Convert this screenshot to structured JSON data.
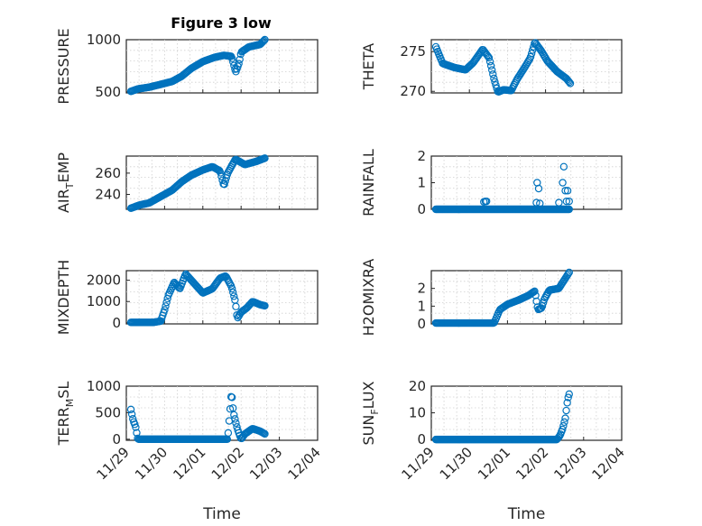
{
  "figure": {
    "title": "Figure 3 low",
    "x_tick_labels": [
      "11/29",
      "11/30",
      "12/01",
      "12/02",
      "12/03",
      "12/04"
    ],
    "xlabel": "Time"
  },
  "chart_data": [
    {
      "type": "scatter",
      "ylabel": "PRESSURE",
      "title": "Figure 3 low",
      "xlim": [
        0,
        5
      ],
      "ylim": [
        490,
        1000
      ],
      "yticks": [
        500,
        1000
      ],
      "knots": [
        [
          0.12,
          505
        ],
        [
          0.3,
          528
        ],
        [
          0.6,
          545
        ],
        [
          0.9,
          572
        ],
        [
          1.2,
          600
        ],
        [
          1.45,
          650
        ],
        [
          1.7,
          725
        ],
        [
          2.0,
          790
        ],
        [
          2.3,
          830
        ],
        [
          2.55,
          850
        ],
        [
          2.75,
          840
        ],
        [
          2.86,
          690
        ],
        [
          2.95,
          780
        ],
        [
          3.0,
          880
        ],
        [
          3.2,
          930
        ],
        [
          3.5,
          955
        ],
        [
          3.62,
          1000
        ]
      ],
      "xlabel": ""
    },
    {
      "type": "scatter",
      "ylabel": "THETA",
      "xlim": [
        0,
        5
      ],
      "ylim": [
        269.8,
        276.5
      ],
      "yticks": [
        270,
        275
      ],
      "knots": [
        [
          0.12,
          275.6
        ],
        [
          0.3,
          273.5
        ],
        [
          0.6,
          273.0
        ],
        [
          0.9,
          272.7
        ],
        [
          1.1,
          273.6
        ],
        [
          1.35,
          275.3
        ],
        [
          1.52,
          274.2
        ],
        [
          1.65,
          271.5
        ],
        [
          1.75,
          269.9
        ],
        [
          1.9,
          270.2
        ],
        [
          2.1,
          270.1
        ],
        [
          2.25,
          271.5
        ],
        [
          2.45,
          273.0
        ],
        [
          2.6,
          274.2
        ],
        [
          2.72,
          276.2
        ],
        [
          2.9,
          275.0
        ],
        [
          3.05,
          273.8
        ],
        [
          3.3,
          272.5
        ],
        [
          3.55,
          271.6
        ],
        [
          3.65,
          271.0
        ]
      ],
      "xlabel": ""
    },
    {
      "type": "scatter",
      "ylabel": "AIR_TEMP",
      "ylabel_main": "AIR",
      "ylabel_sub": "T",
      "ylabel_rest": "EMP",
      "xlim": [
        0,
        5
      ],
      "ylim": [
        226,
        276
      ],
      "yticks": [
        240,
        260
      ],
      "knots": [
        [
          0.12,
          227
        ],
        [
          0.35,
          230
        ],
        [
          0.6,
          232
        ],
        [
          0.9,
          238
        ],
        [
          1.2,
          244
        ],
        [
          1.45,
          252
        ],
        [
          1.7,
          258
        ],
        [
          2.0,
          263
        ],
        [
          2.25,
          266
        ],
        [
          2.45,
          262
        ],
        [
          2.55,
          248
        ],
        [
          2.65,
          260
        ],
        [
          2.85,
          273
        ],
        [
          3.1,
          268
        ],
        [
          3.4,
          271
        ],
        [
          3.62,
          274
        ]
      ],
      "xlabel": ""
    },
    {
      "type": "scatter",
      "ylabel": "RAINFALL",
      "xlim": [
        0,
        5
      ],
      "ylim": [
        0,
        2
      ],
      "yticks": [
        0,
        1,
        2
      ],
      "knots": [
        [
          0.12,
          0
        ],
        [
          3.62,
          0
        ]
      ],
      "extra_points": [
        [
          1.38,
          0.28
        ],
        [
          1.42,
          0.3
        ],
        [
          1.45,
          0.3
        ],
        [
          2.78,
          1.0
        ],
        [
          2.82,
          0.78
        ],
        [
          2.76,
          0.25
        ],
        [
          2.85,
          0.22
        ],
        [
          3.35,
          0.25
        ],
        [
          3.45,
          1.0
        ],
        [
          3.48,
          1.6
        ],
        [
          3.52,
          0.7
        ],
        [
          3.58,
          0.7
        ],
        [
          3.55,
          0.3
        ],
        [
          3.62,
          0.3
        ]
      ],
      "xlabel": ""
    },
    {
      "type": "scatter",
      "ylabel": "MIXDEPTH",
      "xlim": [
        0,
        5
      ],
      "ylim": [
        -50,
        2450
      ],
      "yticks": [
        0,
        1000,
        2000
      ],
      "knots": [
        [
          0.12,
          20
        ],
        [
          0.7,
          20
        ],
        [
          0.9,
          80
        ],
        [
          1.0,
          600
        ],
        [
          1.1,
          1300
        ],
        [
          1.25,
          1900
        ],
        [
          1.4,
          1600
        ],
        [
          1.55,
          2300
        ],
        [
          1.8,
          1800
        ],
        [
          2.0,
          1400
        ],
        [
          2.25,
          1600
        ],
        [
          2.45,
          2100
        ],
        [
          2.6,
          2200
        ],
        [
          2.75,
          1700
        ],
        [
          2.85,
          1000
        ],
        [
          2.9,
          200
        ],
        [
          3.0,
          500
        ],
        [
          3.15,
          700
        ],
        [
          3.3,
          1000
        ],
        [
          3.5,
          850
        ],
        [
          3.62,
          800
        ]
      ],
      "xlabel": ""
    },
    {
      "type": "scatter",
      "ylabel": "H2OMIXRA",
      "xlim": [
        0,
        5
      ],
      "ylim": [
        0,
        3
      ],
      "yticks": [
        0,
        1,
        2
      ],
      "knots": [
        [
          0.12,
          0.05
        ],
        [
          1.65,
          0.05
        ],
        [
          1.72,
          0.4
        ],
        [
          1.8,
          0.8
        ],
        [
          2.0,
          1.1
        ],
        [
          2.3,
          1.35
        ],
        [
          2.55,
          1.6
        ],
        [
          2.72,
          1.85
        ],
        [
          2.8,
          0.8
        ],
        [
          2.9,
          0.9
        ],
        [
          2.97,
          1.4
        ],
        [
          3.1,
          1.9
        ],
        [
          3.35,
          2.0
        ],
        [
          3.5,
          2.5
        ],
        [
          3.62,
          2.9
        ]
      ],
      "xlabel": ""
    },
    {
      "type": "scatter",
      "ylabel": "TERR_MSL",
      "ylabel_main": "TERR",
      "ylabel_sub": "M",
      "ylabel_rest": "SL",
      "xlim": [
        0,
        5
      ],
      "ylim": [
        -20,
        1000
      ],
      "yticks": [
        0,
        500,
        1000
      ],
      "knots": [
        [
          0.12,
          560
        ],
        [
          0.18,
          350
        ],
        [
          0.24,
          250
        ],
        [
          0.3,
          0
        ],
        [
          2.65,
          0
        ],
        [
          2.75,
          900
        ],
        [
          2.8,
          500
        ],
        [
          2.9,
          200
        ],
        [
          3.0,
          0
        ],
        [
          3.1,
          100
        ],
        [
          3.3,
          200
        ],
        [
          3.5,
          150
        ],
        [
          3.62,
          100
        ]
      ],
      "xlabel": "Time"
    },
    {
      "type": "scatter",
      "ylabel": "SUN_FLUX",
      "ylabel_main": "SUN",
      "ylabel_sub": "F",
      "ylabel_rest": "LUX",
      "xlim": [
        0,
        5
      ],
      "ylim": [
        -0.3,
        20
      ],
      "yticks": [
        0,
        10,
        20
      ],
      "knots": [
        [
          0.12,
          0
        ],
        [
          3.3,
          0
        ],
        [
          3.38,
          1.5
        ],
        [
          3.45,
          4
        ],
        [
          3.52,
          8
        ],
        [
          3.58,
          15
        ],
        [
          3.62,
          17
        ]
      ],
      "xlabel": "Time"
    }
  ]
}
